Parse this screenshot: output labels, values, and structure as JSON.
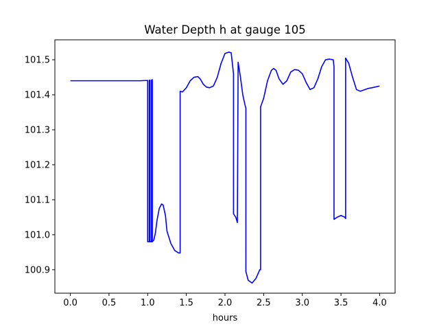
{
  "chart_data": {
    "type": "line",
    "title": "Water Depth h at gauge 105",
    "xlabel": "hours",
    "ylabel": "",
    "xlim": [
      -0.2,
      4.2
    ],
    "ylim": [
      100.833,
      101.557
    ],
    "xticks": [
      0.0,
      0.5,
      1.0,
      1.5,
      2.0,
      2.5,
      3.0,
      3.5,
      4.0
    ],
    "xtick_labels": [
      "0.0",
      "0.5",
      "1.0",
      "1.5",
      "2.0",
      "2.5",
      "3.0",
      "3.5",
      "4.0"
    ],
    "yticks": [
      100.9,
      101.0,
      101.1,
      101.2,
      101.3,
      101.4,
      101.5
    ],
    "ytick_labels": [
      "100.9",
      "101.0",
      "101.1",
      "101.2",
      "101.3",
      "101.4",
      "101.5"
    ],
    "grid": false,
    "legend": "none",
    "series": [
      {
        "color": "#0000ff",
        "x": [
          0.0,
          0.3,
          0.6,
          0.9,
          1.0,
          1.0,
          1.02,
          1.02,
          1.03,
          1.03,
          1.05,
          1.05,
          1.06,
          1.06,
          1.08,
          1.1,
          1.12,
          1.15,
          1.18,
          1.2,
          1.23,
          1.25,
          1.3,
          1.35,
          1.4,
          1.42,
          1.42,
          1.45,
          1.5,
          1.55,
          1.6,
          1.65,
          1.68,
          1.72,
          1.76,
          1.8,
          1.85,
          1.9,
          1.95,
          2.0,
          2.05,
          2.08,
          2.1,
          2.11,
          2.11,
          2.14,
          2.16,
          2.17,
          2.2,
          2.23,
          2.26,
          2.27,
          2.27,
          2.3,
          2.35,
          2.4,
          2.45,
          2.46,
          2.46,
          2.5,
          2.55,
          2.6,
          2.63,
          2.66,
          2.7,
          2.75,
          2.8,
          2.85,
          2.9,
          2.95,
          3.0,
          3.05,
          3.1,
          3.15,
          3.2,
          3.25,
          3.3,
          3.35,
          3.4,
          3.41,
          3.41,
          3.45,
          3.5,
          3.55,
          3.56,
          3.56,
          3.6,
          3.65,
          3.7,
          3.75,
          3.8,
          3.85,
          3.9,
          4.0
        ],
        "y": [
          101.44,
          101.44,
          101.44,
          101.44,
          101.441,
          100.98,
          100.98,
          101.441,
          101.442,
          100.98,
          100.98,
          101.442,
          101.443,
          100.98,
          100.985,
          101.005,
          101.04,
          101.075,
          101.088,
          101.085,
          101.055,
          101.01,
          100.975,
          100.955,
          100.948,
          100.948,
          101.41,
          101.408,
          101.42,
          101.44,
          101.45,
          101.452,
          101.445,
          101.43,
          101.422,
          101.42,
          101.425,
          101.45,
          101.49,
          101.518,
          101.522,
          101.52,
          101.48,
          101.46,
          101.06,
          101.05,
          101.035,
          101.493,
          101.45,
          101.4,
          101.37,
          101.362,
          100.895,
          100.87,
          100.862,
          100.875,
          100.9,
          100.9,
          101.365,
          101.39,
          101.44,
          101.47,
          101.475,
          101.47,
          101.445,
          101.43,
          101.44,
          101.465,
          101.472,
          101.47,
          101.46,
          101.435,
          101.415,
          101.42,
          101.445,
          101.48,
          101.5,
          101.502,
          101.5,
          101.48,
          101.044,
          101.05,
          101.055,
          101.05,
          101.046,
          101.505,
          101.49,
          101.45,
          101.415,
          101.41,
          101.414,
          101.418,
          101.42,
          101.425
        ]
      }
    ]
  }
}
